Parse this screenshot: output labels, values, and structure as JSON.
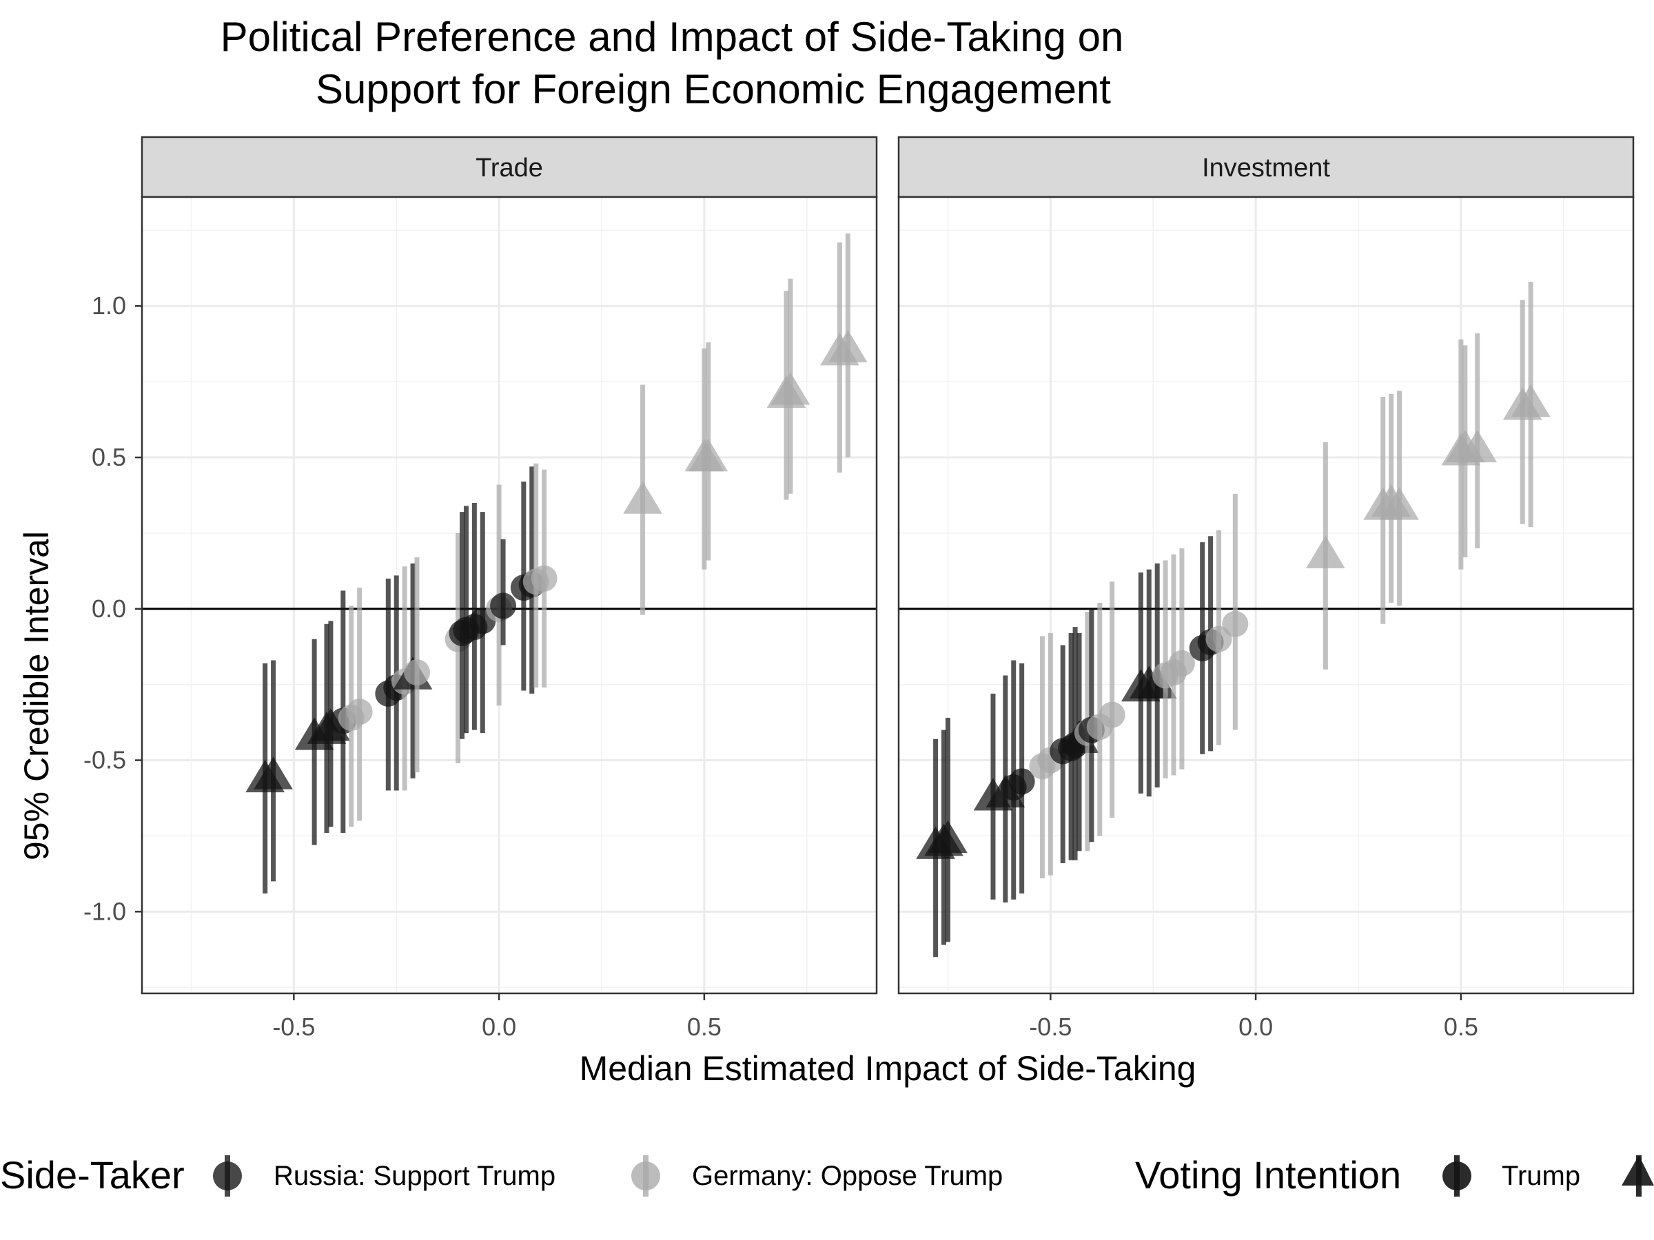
{
  "chart_data": {
    "type": "scatter",
    "title_lines": [
      "Political Preference and Impact of Side-Taking on",
      "Support for Foreign Economic Engagement"
    ],
    "xlabel": "Median Estimated Impact of Side-Taking",
    "ylabel": "95% Credible Interval",
    "y_ticks": [
      {
        "value": 1.0,
        "label": "1.0"
      },
      {
        "value": 0.5,
        "label": "0.5"
      },
      {
        "value": 0.0,
        "label": "0.0"
      },
      {
        "value": -0.5,
        "label": "-0.5"
      },
      {
        "value": -1.0,
        "label": "-1.0"
      }
    ],
    "x_ticks": [
      {
        "value": -0.5,
        "label": "-0.5"
      },
      {
        "value": 0.0,
        "label": "0.0"
      },
      {
        "value": 0.5,
        "label": "0.5"
      }
    ],
    "xlim": [
      -0.87,
      0.92
    ],
    "ylim": [
      -1.27,
      1.36
    ],
    "reference_line_y": 0,
    "grid": true,
    "legend_position": "bottom",
    "legend": {
      "side_taker_title": "Side-Taker",
      "side_taker": [
        {
          "label": "Russia: Support Trump",
          "color": "#141414"
        },
        {
          "label": "Germany: Oppose Trump",
          "color": "#a9a9a9"
        }
      ],
      "voting_title": "Voting Intention",
      "voting": [
        {
          "label": "Trump",
          "shape": "circle"
        },
        {
          "label": "",
          "shape": "triangle"
        }
      ]
    },
    "panels": [
      {
        "label": "Trade",
        "points": [
          {
            "x": -0.57,
            "y": -0.56,
            "lo": -0.94,
            "hi": -0.18,
            "shape": "triangle",
            "color": "#141414"
          },
          {
            "x": -0.55,
            "y": -0.55,
            "lo": -0.9,
            "hi": -0.17,
            "shape": "triangle",
            "color": "#141414"
          },
          {
            "x": -0.45,
            "y": -0.42,
            "lo": -0.78,
            "hi": -0.1,
            "shape": "triangle",
            "color": "#141414"
          },
          {
            "x": -0.42,
            "y": -0.4,
            "lo": -0.74,
            "hi": -0.05,
            "shape": "triangle",
            "color": "#141414"
          },
          {
            "x": -0.41,
            "y": -0.39,
            "lo": -0.72,
            "hi": -0.04,
            "shape": "triangle",
            "color": "#141414"
          },
          {
            "x": -0.38,
            "y": -0.37,
            "lo": -0.74,
            "hi": 0.06,
            "shape": "circle",
            "color": "#141414"
          },
          {
            "x": -0.36,
            "y": -0.36,
            "lo": -0.72,
            "hi": 0.01,
            "shape": "circle",
            "color": "#a9a9a9"
          },
          {
            "x": -0.34,
            "y": -0.34,
            "lo": -0.7,
            "hi": 0.07,
            "shape": "circle",
            "color": "#a9a9a9"
          },
          {
            "x": -0.27,
            "y": -0.28,
            "lo": -0.6,
            "hi": 0.1,
            "shape": "circle",
            "color": "#141414"
          },
          {
            "x": -0.25,
            "y": -0.26,
            "lo": -0.6,
            "hi": 0.11,
            "shape": "circle",
            "color": "#141414"
          },
          {
            "x": -0.23,
            "y": -0.24,
            "lo": -0.6,
            "hi": 0.14,
            "shape": "circle",
            "color": "#a9a9a9"
          },
          {
            "x": -0.21,
            "y": -0.22,
            "lo": -0.56,
            "hi": 0.15,
            "shape": "triangle",
            "color": "#141414"
          },
          {
            "x": -0.2,
            "y": -0.21,
            "lo": -0.54,
            "hi": 0.17,
            "shape": "circle",
            "color": "#a9a9a9"
          },
          {
            "x": -0.1,
            "y": -0.1,
            "lo": -0.51,
            "hi": 0.25,
            "shape": "circle",
            "color": "#a9a9a9"
          },
          {
            "x": -0.09,
            "y": -0.08,
            "lo": -0.43,
            "hi": 0.32,
            "shape": "circle",
            "color": "#141414"
          },
          {
            "x": -0.08,
            "y": -0.07,
            "lo": -0.41,
            "hi": 0.34,
            "shape": "circle",
            "color": "#141414"
          },
          {
            "x": -0.06,
            "y": -0.06,
            "lo": -0.4,
            "hi": 0.35,
            "shape": "circle",
            "color": "#141414"
          },
          {
            "x": -0.04,
            "y": -0.04,
            "lo": -0.41,
            "hi": 0.32,
            "shape": "circle",
            "color": "#141414"
          },
          {
            "x": 0.0,
            "y": 0.0,
            "lo": -0.32,
            "hi": 0.41,
            "shape": "circle",
            "color": "#a9a9a9"
          },
          {
            "x": 0.01,
            "y": 0.01,
            "lo": -0.12,
            "hi": 0.23,
            "shape": "circle",
            "color": "#141414"
          },
          {
            "x": 0.06,
            "y": 0.07,
            "lo": -0.27,
            "hi": 0.42,
            "shape": "circle",
            "color": "#141414"
          },
          {
            "x": 0.08,
            "y": 0.08,
            "lo": -0.28,
            "hi": 0.47,
            "shape": "circle",
            "color": "#141414"
          },
          {
            "x": 0.09,
            "y": 0.09,
            "lo": -0.26,
            "hi": 0.48,
            "shape": "circle",
            "color": "#a9a9a9"
          },
          {
            "x": 0.11,
            "y": 0.1,
            "lo": -0.26,
            "hi": 0.46,
            "shape": "circle",
            "color": "#a9a9a9"
          },
          {
            "x": 0.35,
            "y": 0.36,
            "lo": -0.02,
            "hi": 0.74,
            "shape": "triangle",
            "color": "#a9a9a9"
          },
          {
            "x": 0.5,
            "y": 0.5,
            "lo": 0.13,
            "hi": 0.86,
            "shape": "triangle",
            "color": "#a9a9a9"
          },
          {
            "x": 0.51,
            "y": 0.5,
            "lo": 0.16,
            "hi": 0.88,
            "shape": "triangle",
            "color": "#a9a9a9"
          },
          {
            "x": 0.7,
            "y": 0.71,
            "lo": 0.36,
            "hi": 1.05,
            "shape": "triangle",
            "color": "#a9a9a9"
          },
          {
            "x": 0.71,
            "y": 0.72,
            "lo": 0.38,
            "hi": 1.09,
            "shape": "triangle",
            "color": "#a9a9a9"
          },
          {
            "x": 0.83,
            "y": 0.85,
            "lo": 0.45,
            "hi": 1.21,
            "shape": "triangle",
            "color": "#a9a9a9"
          },
          {
            "x": 0.85,
            "y": 0.86,
            "lo": 0.5,
            "hi": 1.24,
            "shape": "triangle",
            "color": "#a9a9a9"
          }
        ]
      },
      {
        "label": "Investment",
        "points": [
          {
            "x": -0.78,
            "y": -0.78,
            "lo": -1.15,
            "hi": -0.43,
            "shape": "triangle",
            "color": "#141414"
          },
          {
            "x": -0.76,
            "y": -0.77,
            "lo": -1.11,
            "hi": -0.4,
            "shape": "triangle",
            "color": "#141414"
          },
          {
            "x": -0.75,
            "y": -0.76,
            "lo": -1.1,
            "hi": -0.36,
            "shape": "triangle",
            "color": "#141414"
          },
          {
            "x": -0.64,
            "y": -0.62,
            "lo": -0.96,
            "hi": -0.28,
            "shape": "triangle",
            "color": "#141414"
          },
          {
            "x": -0.61,
            "y": -0.61,
            "lo": -0.97,
            "hi": -0.22,
            "shape": "triangle",
            "color": "#141414"
          },
          {
            "x": -0.59,
            "y": -0.59,
            "lo": -0.96,
            "hi": -0.17,
            "shape": "circle",
            "color": "#141414"
          },
          {
            "x": -0.57,
            "y": -0.57,
            "lo": -0.94,
            "hi": -0.18,
            "shape": "circle",
            "color": "#141414"
          },
          {
            "x": -0.52,
            "y": -0.52,
            "lo": -0.89,
            "hi": -0.09,
            "shape": "circle",
            "color": "#a9a9a9"
          },
          {
            "x": -0.5,
            "y": -0.5,
            "lo": -0.88,
            "hi": -0.08,
            "shape": "circle",
            "color": "#a9a9a9"
          },
          {
            "x": -0.47,
            "y": -0.47,
            "lo": -0.84,
            "hi": -0.12,
            "shape": "circle",
            "color": "#141414"
          },
          {
            "x": -0.45,
            "y": -0.46,
            "lo": -0.83,
            "hi": -0.08,
            "shape": "circle",
            "color": "#141414"
          },
          {
            "x": -0.44,
            "y": -0.45,
            "lo": -0.83,
            "hi": -0.06,
            "shape": "circle",
            "color": "#141414"
          },
          {
            "x": -0.43,
            "y": -0.43,
            "lo": -0.8,
            "hi": -0.08,
            "shape": "triangle",
            "color": "#141414"
          },
          {
            "x": -0.41,
            "y": -0.41,
            "lo": -0.8,
            "hi": -0.01,
            "shape": "circle",
            "color": "#a9a9a9"
          },
          {
            "x": -0.4,
            "y": -0.4,
            "lo": -0.77,
            "hi": 0.0,
            "shape": "circle",
            "color": "#141414"
          },
          {
            "x": -0.38,
            "y": -0.39,
            "lo": -0.75,
            "hi": 0.02,
            "shape": "circle",
            "color": "#a9a9a9"
          },
          {
            "x": -0.35,
            "y": -0.35,
            "lo": -0.69,
            "hi": 0.09,
            "shape": "circle",
            "color": "#a9a9a9"
          },
          {
            "x": -0.28,
            "y": -0.26,
            "lo": -0.61,
            "hi": 0.12,
            "shape": "triangle",
            "color": "#141414"
          },
          {
            "x": -0.26,
            "y": -0.25,
            "lo": -0.62,
            "hi": 0.13,
            "shape": "triangle",
            "color": "#141414"
          },
          {
            "x": -0.24,
            "y": -0.25,
            "lo": -0.59,
            "hi": 0.15,
            "shape": "triangle",
            "color": "#141414"
          },
          {
            "x": -0.22,
            "y": -0.22,
            "lo": -0.56,
            "hi": 0.16,
            "shape": "circle",
            "color": "#a9a9a9"
          },
          {
            "x": -0.2,
            "y": -0.21,
            "lo": -0.55,
            "hi": 0.18,
            "shape": "circle",
            "color": "#a9a9a9"
          },
          {
            "x": -0.18,
            "y": -0.18,
            "lo": -0.53,
            "hi": 0.2,
            "shape": "circle",
            "color": "#a9a9a9"
          },
          {
            "x": -0.13,
            "y": -0.13,
            "lo": -0.48,
            "hi": 0.22,
            "shape": "circle",
            "color": "#141414"
          },
          {
            "x": -0.11,
            "y": -0.11,
            "lo": -0.47,
            "hi": 0.24,
            "shape": "circle",
            "color": "#141414"
          },
          {
            "x": -0.09,
            "y": -0.1,
            "lo": -0.45,
            "hi": 0.26,
            "shape": "circle",
            "color": "#a9a9a9"
          },
          {
            "x": -0.05,
            "y": -0.05,
            "lo": -0.4,
            "hi": 0.38,
            "shape": "circle",
            "color": "#a9a9a9"
          },
          {
            "x": 0.17,
            "y": 0.18,
            "lo": -0.2,
            "hi": 0.55,
            "shape": "triangle",
            "color": "#a9a9a9"
          },
          {
            "x": 0.31,
            "y": 0.34,
            "lo": -0.05,
            "hi": 0.7,
            "shape": "triangle",
            "color": "#a9a9a9"
          },
          {
            "x": 0.33,
            "y": 0.35,
            "lo": 0.02,
            "hi": 0.71,
            "shape": "triangle",
            "color": "#a9a9a9"
          },
          {
            "x": 0.35,
            "y": 0.34,
            "lo": 0.01,
            "hi": 0.72,
            "shape": "triangle",
            "color": "#a9a9a9"
          },
          {
            "x": 0.5,
            "y": 0.52,
            "lo": 0.13,
            "hi": 0.89,
            "shape": "triangle",
            "color": "#a9a9a9"
          },
          {
            "x": 0.51,
            "y": 0.53,
            "lo": 0.17,
            "hi": 0.87,
            "shape": "triangle",
            "color": "#a9a9a9"
          },
          {
            "x": 0.54,
            "y": 0.53,
            "lo": 0.2,
            "hi": 0.91,
            "shape": "triangle",
            "color": "#a9a9a9"
          },
          {
            "x": 0.65,
            "y": 0.67,
            "lo": 0.28,
            "hi": 1.02,
            "shape": "triangle",
            "color": "#a9a9a9"
          },
          {
            "x": 0.67,
            "y": 0.68,
            "lo": 0.27,
            "hi": 1.08,
            "shape": "triangle",
            "color": "#a9a9a9"
          }
        ]
      }
    ]
  }
}
